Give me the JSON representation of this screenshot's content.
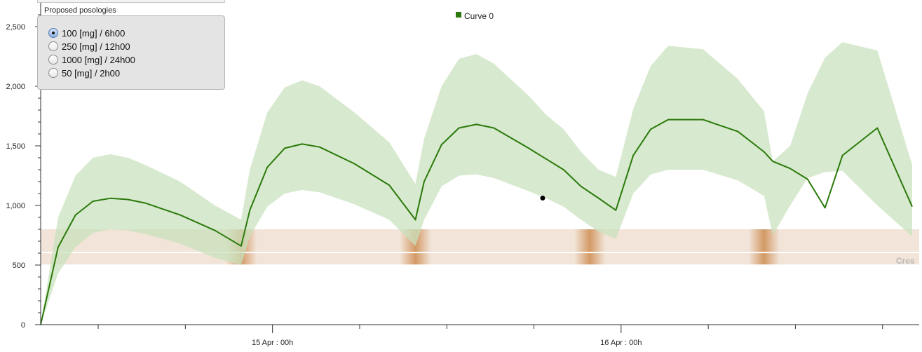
{
  "chart_data": {
    "type": "line",
    "legend": {
      "label": "Curve 0",
      "color": "#2b7a0b",
      "position": "top-center"
    },
    "y_axis": {
      "min": 0,
      "max": 2700,
      "ticks": [
        0,
        500,
        1000,
        1500,
        2000,
        2500
      ],
      "tick_labels": [
        "0",
        "500",
        "1,000",
        "1,500",
        "2,000",
        "2,500"
      ]
    },
    "x_axis": {
      "start_hour": 0,
      "end_hour": 50,
      "major_ticks": [
        13.3,
        33.3
      ],
      "major_labels": [
        "15 Apr : 00h",
        "16 Apr : 00h"
      ],
      "minor_ticks": [
        3.3,
        8.3,
        18.3,
        23.3,
        28.3,
        38.3,
        43.3,
        48.3
      ]
    },
    "series": [
      {
        "name": "Curve 0",
        "color": "#2b7a0b",
        "x": [
          0,
          1,
          2,
          3,
          4,
          5,
          6,
          8,
          10,
          11.5,
          12,
          13,
          14,
          15,
          16,
          18,
          20,
          21.5,
          22,
          23,
          24,
          25,
          26,
          28,
          29,
          30,
          31,
          32,
          33,
          34,
          35,
          36,
          38,
          40,
          41.5,
          42,
          43,
          44,
          45,
          46,
          48,
          50
        ],
        "y": [
          0,
          650,
          920,
          1035,
          1060,
          1050,
          1020,
          920,
          790,
          660,
          960,
          1320,
          1480,
          1515,
          1490,
          1350,
          1170,
          880,
          1200,
          1510,
          1650,
          1680,
          1650,
          1480,
          1390,
          1300,
          1160,
          1062,
          960,
          1420,
          1640,
          1720,
          1720,
          1620,
          1450,
          1370,
          1310,
          1220,
          980,
          1420,
          1650,
          990
        ]
      },
      {
        "name": "upper_bound",
        "color": "#d6e8cf",
        "x": [
          0,
          1,
          2,
          3,
          4,
          5,
          6,
          8,
          10,
          11.5,
          12,
          13,
          14,
          15,
          16,
          18,
          20,
          21.5,
          22,
          23,
          24,
          25,
          26,
          28,
          29,
          30,
          31,
          32,
          33,
          34,
          35,
          36,
          38,
          40,
          41.5,
          42,
          43,
          44,
          45,
          46,
          48,
          50
        ],
        "y": [
          0,
          900,
          1250,
          1400,
          1430,
          1400,
          1340,
          1200,
          1000,
          880,
          1300,
          1780,
          1990,
          2050,
          2000,
          1780,
          1530,
          1180,
          1560,
          2000,
          2230,
          2270,
          2190,
          1920,
          1760,
          1640,
          1450,
          1300,
          1240,
          1810,
          2170,
          2340,
          2310,
          2060,
          1790,
          1370,
          1500,
          1940,
          2240,
          2370,
          2300,
          1340
        ]
      },
      {
        "name": "lower_bound",
        "color": "#d6e8cf",
        "x": [
          0,
          1,
          2,
          3,
          4,
          5,
          6,
          8,
          10,
          11.5,
          12,
          13,
          14,
          15,
          16,
          18,
          20,
          21.5,
          22,
          23,
          24,
          25,
          26,
          28,
          29,
          30,
          31,
          32,
          33,
          34,
          35,
          36,
          38,
          40,
          41.5,
          42,
          43,
          44,
          45,
          46,
          48,
          50
        ],
        "y": [
          0,
          430,
          650,
          770,
          800,
          790,
          760,
          680,
          560,
          500,
          740,
          990,
          1100,
          1130,
          1110,
          1010,
          880,
          660,
          880,
          1160,
          1250,
          1260,
          1230,
          1120,
          1060,
          990,
          880,
          780,
          720,
          1100,
          1260,
          1300,
          1300,
          1210,
          1080,
          750,
          1000,
          1230,
          1280,
          1290,
          1000,
          740
        ]
      }
    ],
    "target_band": {
      "label": "Cres",
      "y_min": 505,
      "y_max": 800,
      "y_line": 605,
      "color": "#f2e4d8",
      "dose_marks_x": [
        11.5,
        21.5,
        31.5,
        41.5
      ]
    },
    "selected_point": {
      "x": 28.8,
      "y": 1062
    },
    "grid": false
  },
  "posology_panel": {
    "title": "Proposed posologies",
    "options": [
      {
        "label": "100 [mg] / 6h00",
        "selected": true
      },
      {
        "label": "250 [mg] / 12h00",
        "selected": false
      },
      {
        "label": "1000 [mg] / 24h00",
        "selected": false
      },
      {
        "label": "50 [mg] / 2h00",
        "selected": false
      }
    ]
  }
}
